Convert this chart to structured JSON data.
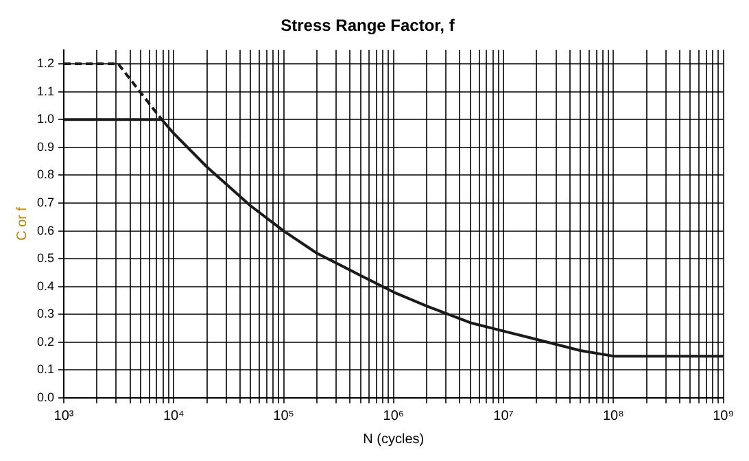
{
  "chart_data": {
    "type": "line",
    "title": "Stress Range Factor, f",
    "xlabel": "N (cycles)",
    "ylabel": "C or f",
    "log": "x",
    "grid": true,
    "legend": false,
    "marker": "none",
    "xlim": [
      1000,
      1000000000
    ],
    "ylim": [
      0,
      1.25
    ],
    "xticks": [
      {
        "value": 1000,
        "label": "10³"
      },
      {
        "value": 2000,
        "label": null
      },
      {
        "value": 3000,
        "label": null
      },
      {
        "value": 4000,
        "label": null
      },
      {
        "value": 5000,
        "label": null
      },
      {
        "value": 6000,
        "label": null
      },
      {
        "value": 7000,
        "label": null
      },
      {
        "value": 8000,
        "label": null
      },
      {
        "value": 9000,
        "label": null
      },
      {
        "value": 10000,
        "label": "10⁴"
      },
      {
        "value": 20000,
        "label": null
      },
      {
        "value": 30000,
        "label": null
      },
      {
        "value": 40000,
        "label": null
      },
      {
        "value": 50000,
        "label": null
      },
      {
        "value": 60000,
        "label": null
      },
      {
        "value": 70000,
        "label": null
      },
      {
        "value": 80000,
        "label": null
      },
      {
        "value": 90000,
        "label": null
      },
      {
        "value": 100000,
        "label": "10⁵"
      },
      {
        "value": 200000,
        "label": null
      },
      {
        "value": 300000,
        "label": null
      },
      {
        "value": 400000,
        "label": null
      },
      {
        "value": 500000,
        "label": null
      },
      {
        "value": 600000,
        "label": null
      },
      {
        "value": 700000,
        "label": null
      },
      {
        "value": 800000,
        "label": null
      },
      {
        "value": 900000,
        "label": null
      },
      {
        "value": 1000000,
        "label": "10⁶"
      },
      {
        "value": 2000000,
        "label": null
      },
      {
        "value": 3000000,
        "label": null
      },
      {
        "value": 4000000,
        "label": null
      },
      {
        "value": 5000000,
        "label": null
      },
      {
        "value": 6000000,
        "label": null
      },
      {
        "value": 7000000,
        "label": null
      },
      {
        "value": 8000000,
        "label": null
      },
      {
        "value": 9000000,
        "label": null
      },
      {
        "value": 10000000,
        "label": "10⁷"
      },
      {
        "value": 20000000,
        "label": null
      },
      {
        "value": 30000000,
        "label": null
      },
      {
        "value": 40000000,
        "label": null
      },
      {
        "value": 50000000,
        "label": null
      },
      {
        "value": 60000000,
        "label": null
      },
      {
        "value": 70000000,
        "label": null
      },
      {
        "value": 80000000,
        "label": null
      },
      {
        "value": 90000000,
        "label": null
      },
      {
        "value": 100000000,
        "label": "10⁸"
      },
      {
        "value": 200000000,
        "label": null
      },
      {
        "value": 300000000,
        "label": null
      },
      {
        "value": 400000000,
        "label": null
      },
      {
        "value": 500000000,
        "label": null
      },
      {
        "value": 600000000,
        "label": null
      },
      {
        "value": 700000000,
        "label": null
      },
      {
        "value": 800000000,
        "label": null
      },
      {
        "value": 900000000,
        "label": null
      },
      {
        "value": 1000000000,
        "label": "10⁹"
      }
    ],
    "yticks": [
      {
        "value": 0,
        "label": "0.0"
      },
      0.1,
      0.2,
      0.3,
      0.4,
      0.5,
      0.6,
      0.7,
      0.8,
      0.9,
      {
        "value": 1,
        "label": "1.0"
      },
      1.1,
      1.2
    ],
    "series": [
      {
        "color": "#1a1a1a",
        "line_style": "solid",
        "x": [
          1000,
          7776,
          10000,
          20000,
          50000,
          100000,
          200000,
          500000,
          1000000,
          2000000,
          5000000,
          10000000,
          20000000,
          50000000,
          100000000,
          1000000000
        ],
        "values": [
          1.0,
          1.0,
          0.95,
          0.83,
          0.69,
          0.6,
          0.52,
          0.44,
          0.38,
          0.33,
          0.27,
          0.24,
          0.21,
          0.17,
          0.15,
          0.15
        ]
      },
      {
        "color": "#1a1a1a",
        "line_style": "dashed",
        "x": [
          1000,
          3125,
          7776
        ],
        "values": [
          1.2,
          1.2,
          1.0
        ]
      }
    ]
  }
}
